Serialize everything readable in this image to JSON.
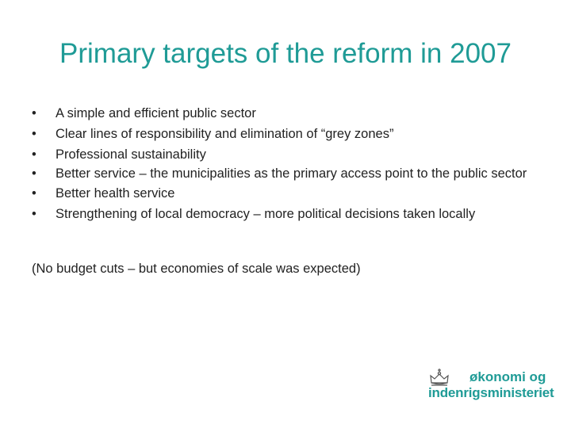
{
  "title": "Primary targets of the reform in 2007",
  "bullets": [
    {
      "marker": "•",
      "text": "A simple and efficient public sector"
    },
    {
      "marker": "•",
      "text": "Clear lines of responsibility  and elimination of “grey zones”"
    },
    {
      "marker": "•",
      "text": "Professional sustainability"
    },
    {
      "marker": "•",
      "text": "Better service – the municipalities as the primary access point to the public sector"
    },
    {
      "marker": "•",
      "text": "Better health service"
    },
    {
      "marker": "•",
      "text": "Strengthening of local democracy – more political decisions taken locally"
    }
  ],
  "note": "(No budget cuts – but economies of scale was expected)",
  "logo": {
    "icon": "crown-icon",
    "line1": "økonomi og",
    "line2": "indenrigsministeriet",
    "color": "#1f9b96"
  },
  "colors": {
    "title": "#1f9b96",
    "text": "#222222",
    "background": "#ffffff"
  }
}
